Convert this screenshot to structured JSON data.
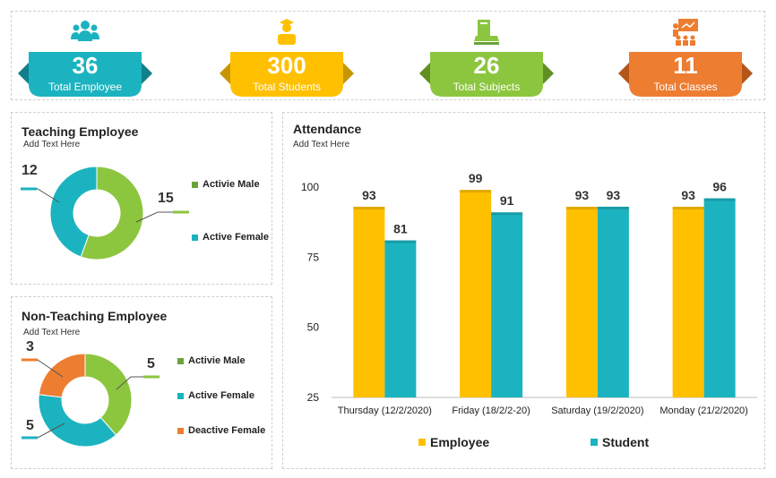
{
  "kpis": [
    {
      "value": "36",
      "label": "Total Employee",
      "color": "#1BB3BF",
      "dark": "#11808a",
      "icon": "people-icon"
    },
    {
      "value": "300",
      "label": "Total Students",
      "color": "#FFC000",
      "dark": "#c79500",
      "icon": "student-icon"
    },
    {
      "value": "26",
      "label": "Total Subjects",
      "color": "#8CC63F",
      "dark": "#5f8f22",
      "icon": "books-icon"
    },
    {
      "value": "11",
      "label": "Total Classes",
      "color": "#ED7D31",
      "dark": "#b3561a",
      "icon": "classroom-icon"
    }
  ],
  "teaching": {
    "title": "Teaching Employee",
    "subtitle": "Add Text Here",
    "values": [
      "12",
      "15"
    ],
    "legend": [
      {
        "label": "Activie Male",
        "color": "#6aa23a"
      },
      {
        "label": "Active Female",
        "color": "#1BB3BF"
      }
    ]
  },
  "nonteaching": {
    "title": "Non-Teaching Employee",
    "subtitle": "Add Text Here",
    "values": [
      "3",
      "5",
      "5"
    ],
    "legend": [
      {
        "label": "Activie Male",
        "color": "#6aa23a"
      },
      {
        "label": "Active Female",
        "color": "#1BB3BF"
      },
      {
        "label": "Deactive Female",
        "color": "#ED7D31"
      }
    ]
  },
  "attendance": {
    "title": "Attendance",
    "subtitle": "Add Text Here"
  },
  "chart_data": [
    {
      "type": "pie",
      "title": "Teaching Employee",
      "categories": [
        "Activie Male",
        "Active Female"
      ],
      "values": [
        15,
        12
      ],
      "colors": [
        "#8CC63F",
        "#1BB3BF"
      ]
    },
    {
      "type": "pie",
      "title": "Non-Teaching Employee",
      "categories": [
        "Activie Male",
        "Active Female",
        "Deactive Female"
      ],
      "values": [
        5,
        5,
        3
      ],
      "colors": [
        "#8CC63F",
        "#1BB3BF",
        "#ED7D31"
      ]
    },
    {
      "type": "bar",
      "title": "Attendance",
      "categories": [
        "Thursday (12/2/2020)",
        "Friday (18/2/2-20)",
        "Saturday (19/2/2020)",
        "Monday (21/2/2020)"
      ],
      "series": [
        {
          "name": "Employee",
          "values": [
            93,
            99,
            93,
            93
          ],
          "color": "#FFC000"
        },
        {
          "name": "Student",
          "values": [
            81,
            91,
            93,
            96
          ],
          "color": "#1BB3BF"
        }
      ],
      "ylim": [
        25,
        100
      ],
      "yticks": [
        25,
        50,
        75,
        100
      ],
      "legend": "bottom"
    }
  ]
}
